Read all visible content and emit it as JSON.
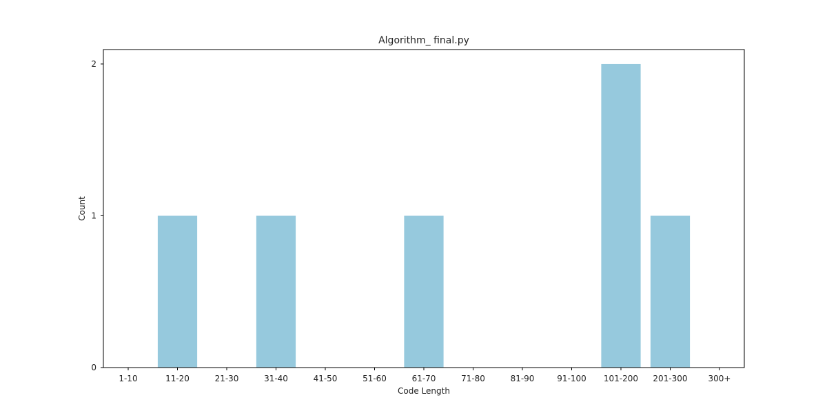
{
  "chart_data": {
    "type": "bar",
    "title": "Algorithm_ final.py",
    "xlabel": "Code Length",
    "ylabel": "Count",
    "categories": [
      "1-10",
      "11-20",
      "21-30",
      "31-40",
      "41-50",
      "51-60",
      "61-70",
      "71-80",
      "81-90",
      "91-100",
      "101-200",
      "201-300",
      "300+"
    ],
    "values": [
      0,
      1,
      0,
      1,
      0,
      0,
      1,
      0,
      0,
      0,
      2,
      1,
      0
    ],
    "yticks": [
      "0",
      "1",
      "2"
    ],
    "ylim": [
      0,
      2.095
    ],
    "grid": false,
    "legend": "none",
    "bar_color": "#96c9dd"
  }
}
